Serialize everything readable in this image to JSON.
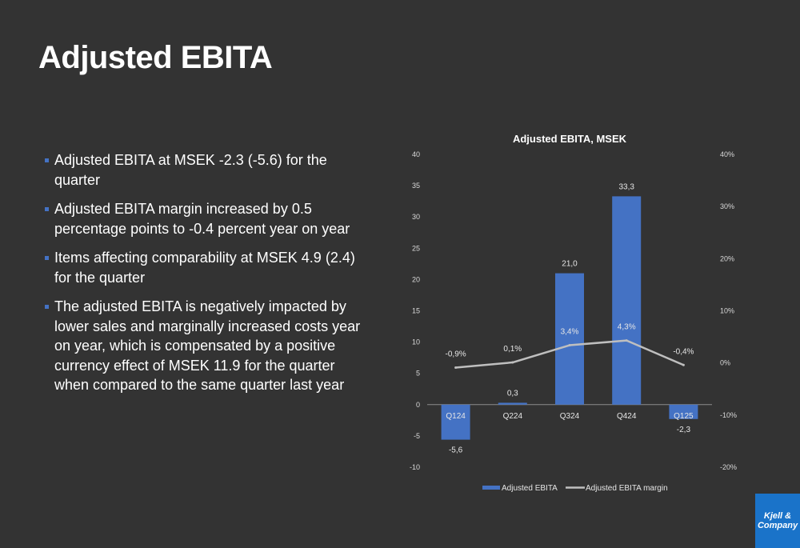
{
  "slide": {
    "title": "Adjusted EBITA"
  },
  "bullets": [
    "Adjusted EBITA at MSEK -2.3 (-5.6) for the quarter",
    "Adjusted EBITA margin increased by 0.5 percentage points to -0.4 percent year on year",
    "Items affecting comparability at MSEK 4.9 (2.4) for the quarter",
    "The adjusted EBITA is negatively impacted by lower sales and marginally increased costs year on year, which is compensated by a positive currency effect of MSEK 11.9 for the quarter when compared to the same quarter last year"
  ],
  "logo": {
    "line1": "Kjell &",
    "line2": "Company"
  },
  "colors": {
    "background": "#333333",
    "bar": "#4472c4",
    "line": "#bfbfbf",
    "logo": "#1a73c9"
  },
  "chart_data": {
    "type": "bar",
    "title": "Adjusted EBITA, MSEK",
    "categories": [
      "Q124",
      "Q224",
      "Q324",
      "Q424",
      "Q125"
    ],
    "series": [
      {
        "name": "Adjusted EBITA",
        "type": "bar",
        "axis": "left",
        "values": [
          -5.6,
          0.3,
          21.0,
          33.3,
          -2.3
        ],
        "labels": [
          "-5,6",
          "0,3",
          "21,0",
          "33,3",
          "-2,3"
        ]
      },
      {
        "name": "Adjusted EBITA margin",
        "type": "line",
        "axis": "right",
        "values": [
          -0.9,
          0.1,
          3.4,
          4.3,
          -0.4
        ],
        "labels": [
          "-0,9%",
          "0,1%",
          "3,4%",
          "4,3%",
          "-0,4%"
        ]
      }
    ],
    "y_left": {
      "ylim": [
        -10,
        40
      ],
      "ticks": [
        40,
        35,
        30,
        25,
        20,
        15,
        10,
        5,
        0,
        -5,
        -10
      ],
      "tick_labels": [
        "40",
        "35",
        "30",
        "25",
        "20",
        "15",
        "10",
        "5",
        "0",
        "-5",
        "-10"
      ]
    },
    "y_right": {
      "ylim": [
        -20,
        40
      ],
      "ticks": [
        40,
        30,
        20,
        10,
        0,
        -10,
        -20
      ],
      "tick_labels": [
        "40%",
        "30%",
        "20%",
        "10%",
        "0%",
        "-10%",
        "-20%"
      ]
    },
    "grid": false,
    "legend": "bottom"
  }
}
